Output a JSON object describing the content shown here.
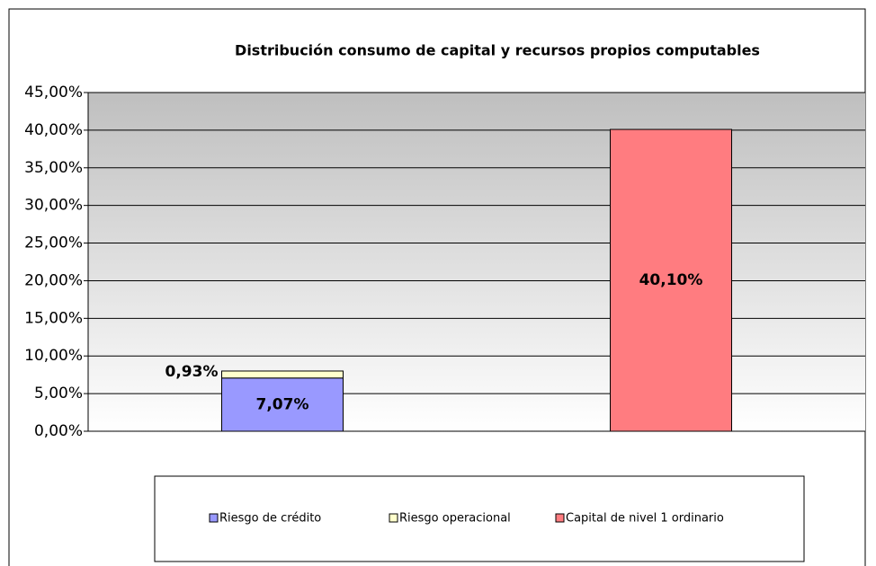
{
  "chart_data": {
    "type": "stacked_bar",
    "title": "Distribución consumo de capital y recursos propios computables",
    "categories": [
      null,
      null
    ],
    "series": [
      {
        "name": "Riesgo de crédito",
        "color": "#9999ff",
        "values": [
          7.07,
          null
        ],
        "value_labels": [
          "7,07%",
          null
        ]
      },
      {
        "name": "Riesgo operacional",
        "color": "#ffffcc",
        "values": [
          0.93,
          null
        ],
        "value_labels": [
          "0,93%",
          null
        ]
      },
      {
        "name": "Capital de nivel 1 ordinario",
        "color": "#ff7c80",
        "values": [
          null,
          40.1
        ],
        "value_labels": [
          null,
          "40,10%"
        ]
      }
    ],
    "ylim": [
      0,
      45
    ],
    "yticks": [
      {
        "value": 0,
        "label": "0,00%"
      },
      {
        "value": 5,
        "label": "5,00%"
      },
      {
        "value": 10,
        "label": "10,00%"
      },
      {
        "value": 15,
        "label": "15,00%"
      },
      {
        "value": 20,
        "label": "20,00%"
      },
      {
        "value": 25,
        "label": "25,00%"
      },
      {
        "value": 30,
        "label": "30,00%"
      },
      {
        "value": 35,
        "label": "35,00%"
      },
      {
        "value": 40,
        "label": "40,00%"
      },
      {
        "value": 45,
        "label": "45,00%"
      }
    ],
    "grid": true,
    "legend": "bottom"
  }
}
